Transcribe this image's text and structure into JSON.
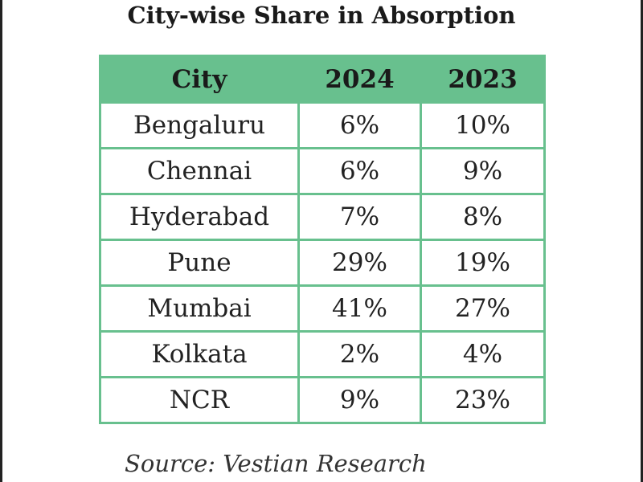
{
  "chart_data": {
    "type": "table",
    "title": "City-wise Share in Absorption",
    "columns": [
      "City",
      "2024",
      "2023"
    ],
    "rows": [
      [
        "Bengaluru",
        "6%",
        "10%"
      ],
      [
        "Chennai",
        "6%",
        "9%"
      ],
      [
        "Hyderabad",
        "7%",
        "8%"
      ],
      [
        "Pune",
        "29%",
        "19%"
      ],
      [
        "Mumbai",
        "41%",
        "27%"
      ],
      [
        "Kolkata",
        "2%",
        "4%"
      ],
      [
        "NCR",
        "9%",
        "23%"
      ]
    ],
    "header_color": "#68c08e",
    "source": "Source: Vestian Research"
  }
}
